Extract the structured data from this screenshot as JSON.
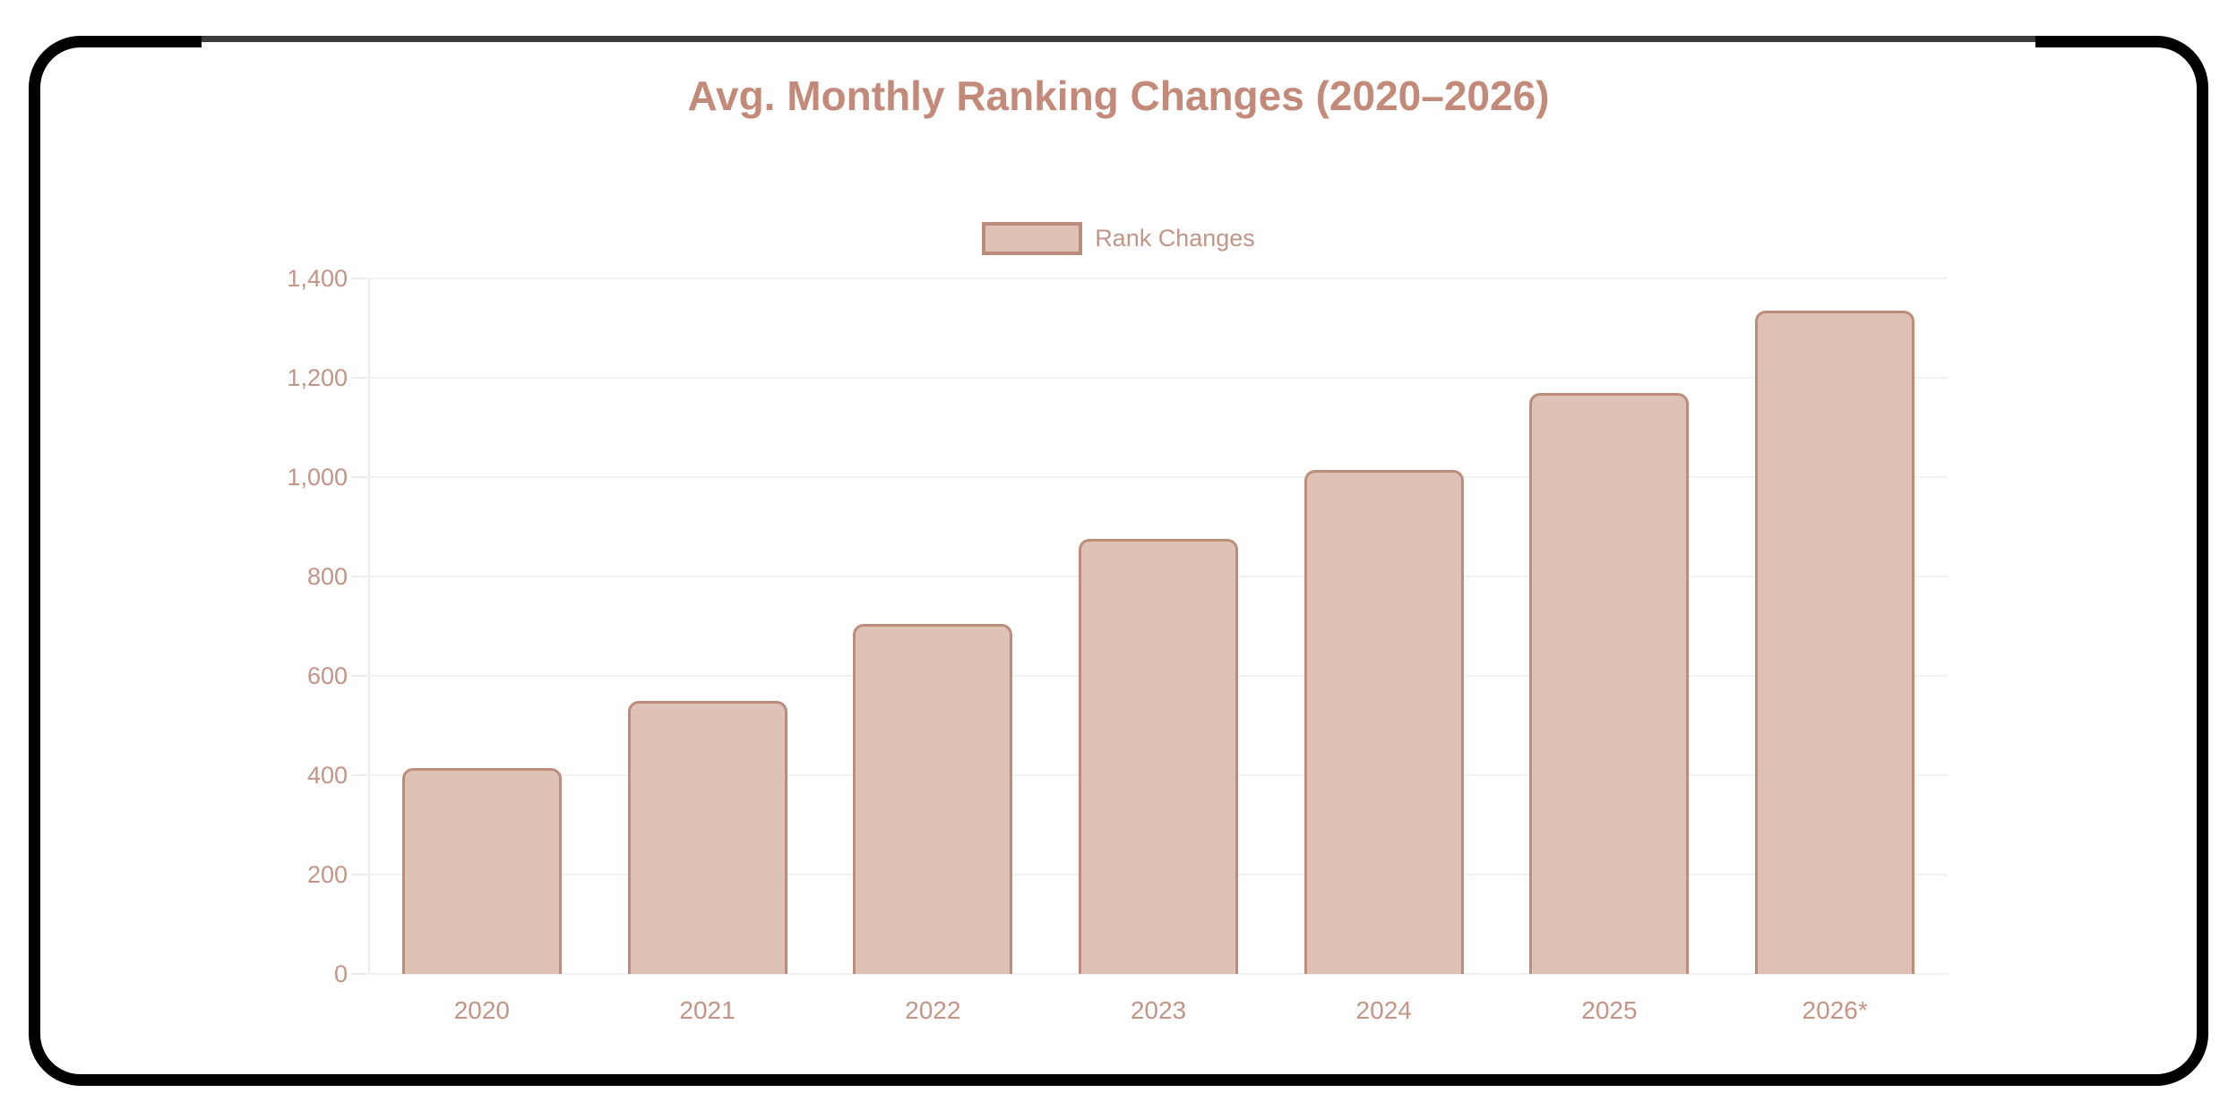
{
  "card": {
    "title": "Avg. Monthly Ranking Changes (2020–2026)"
  },
  "legend": {
    "label": "Rank Changes"
  },
  "chart_data": {
    "type": "bar",
    "title": "Avg. Monthly Ranking Changes (2020–2026)",
    "categories": [
      "2020",
      "2021",
      "2022",
      "2023",
      "2024",
      "2025",
      "2026*"
    ],
    "series": [
      {
        "name": "Rank Changes",
        "values": [
          415,
          550,
          705,
          875,
          1015,
          1170,
          1335
        ]
      }
    ],
    "xlabel": "",
    "ylabel": "",
    "ylim": [
      0,
      1400
    ],
    "ytick_values": [
      0,
      200,
      400,
      600,
      800,
      1000,
      1200,
      1400
    ],
    "ytick_labels": [
      "0",
      "200",
      "400",
      "600",
      "800",
      "1,000",
      "1,200",
      "1,400"
    ],
    "grid": "horizontal",
    "legend_position": "top",
    "colors": {
      "bar_fill": "#dec2b6",
      "bar_border": "#bc8d7a",
      "title_text": "#c38a79",
      "tick_text": "#c49486",
      "gridline": "#f2f2f2",
      "axis_line": "#ececec",
      "frame": "#000000"
    }
  }
}
